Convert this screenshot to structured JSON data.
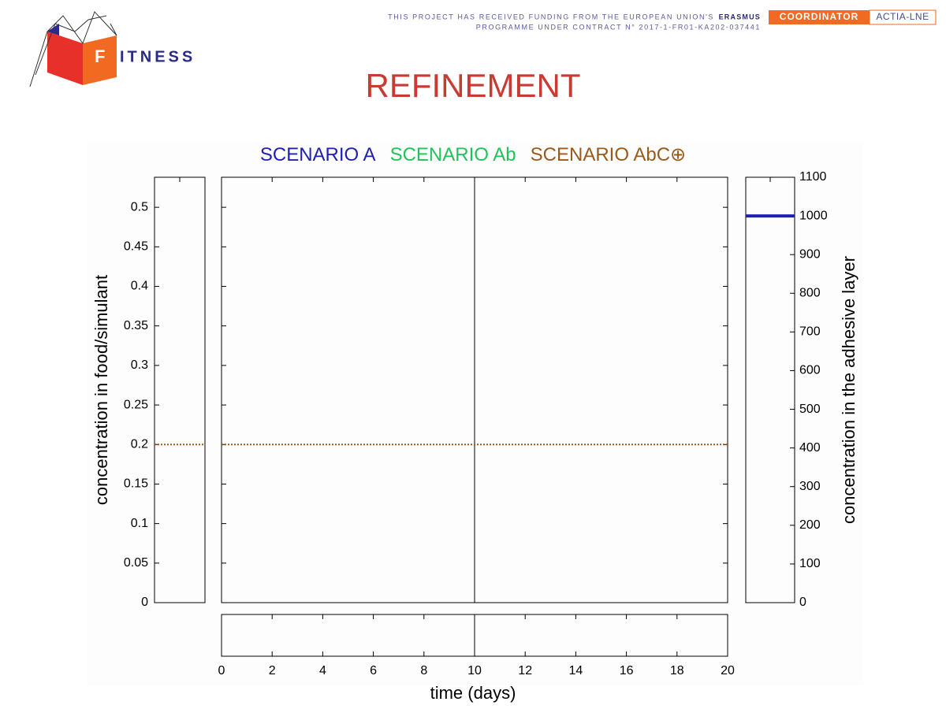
{
  "header": {
    "logo_initial": "F",
    "logo_rest": "ITNESS",
    "funding_line1": "THIS PROJECT HAS RECEIVED FUNDING FROM THE EUROPEAN UNION'S",
    "funding_program": "ERASMUS",
    "funding_line2": "PROGRAMME UNDER CONTRACT N° 2017-1-FR01-KA202-037441",
    "coordinator_label": "COORDINATOR",
    "coordinator_name": "ACTIA-LNE"
  },
  "slide_title": "REFINEMENT",
  "chart_data": {
    "type": "line",
    "x": [
      0,
      20
    ],
    "series": [
      {
        "name": "SCENARIO A",
        "color": "#1f1fb4",
        "axis": "y2",
        "values": [
          1000,
          1000
        ]
      },
      {
        "name": "SCENARIO Ab",
        "color": "#22c25a",
        "values": [
          null,
          null
        ]
      },
      {
        "name": "SCENARIO AbC⊕",
        "color": "#9a5a1a",
        "line_style": "dotted",
        "values": [
          0.2,
          0.2
        ]
      }
    ],
    "current_time": 10,
    "xlabel": "time (days)",
    "ylabel": "concentration in food/simulant",
    "y2label": "concentration in the adhesive layer",
    "xlim": [
      0,
      20
    ],
    "xticks": [
      0,
      2,
      4,
      6,
      8,
      10,
      12,
      14,
      16,
      18,
      20
    ],
    "ylim": [
      0,
      0.538
    ],
    "yticks": [
      0,
      0.05,
      0.1,
      0.15,
      0.2,
      0.25,
      0.3,
      0.35,
      0.4,
      0.45,
      0.5
    ],
    "y2lim": [
      0,
      1100
    ],
    "y2ticks": [
      0,
      100,
      200,
      300,
      400,
      500,
      600,
      700,
      800,
      900,
      1000,
      1100
    ]
  }
}
